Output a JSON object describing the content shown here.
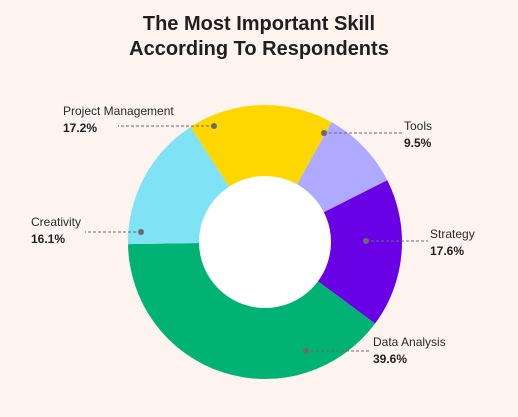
{
  "title": {
    "line1": "The Most Important Skill",
    "line2": "According To Respondents"
  },
  "colors": {
    "background": "#fdf4ef",
    "hole": "#ffffff",
    "leader": "#6b6b6b"
  },
  "chart_data": {
    "type": "pie",
    "donut": true,
    "title": "The Most Important Skill According To Respondents",
    "slices": [
      {
        "label": "Tools",
        "value": 9.5,
        "display": "9.5%",
        "color": "#aeaaff"
      },
      {
        "label": "Strategy",
        "value": 17.6,
        "display": "17.6%",
        "color": "#6a00e6"
      },
      {
        "label": "Data Analysis",
        "value": 39.6,
        "display": "39.6%",
        "color": "#00b274"
      },
      {
        "label": "Creativity",
        "value": 16.1,
        "display": "16.1%",
        "color": "#7fe3f5"
      },
      {
        "label": "Project Management",
        "value": 17.2,
        "display": "17.2%",
        "color": "#fed700"
      }
    ],
    "legend": "none"
  }
}
